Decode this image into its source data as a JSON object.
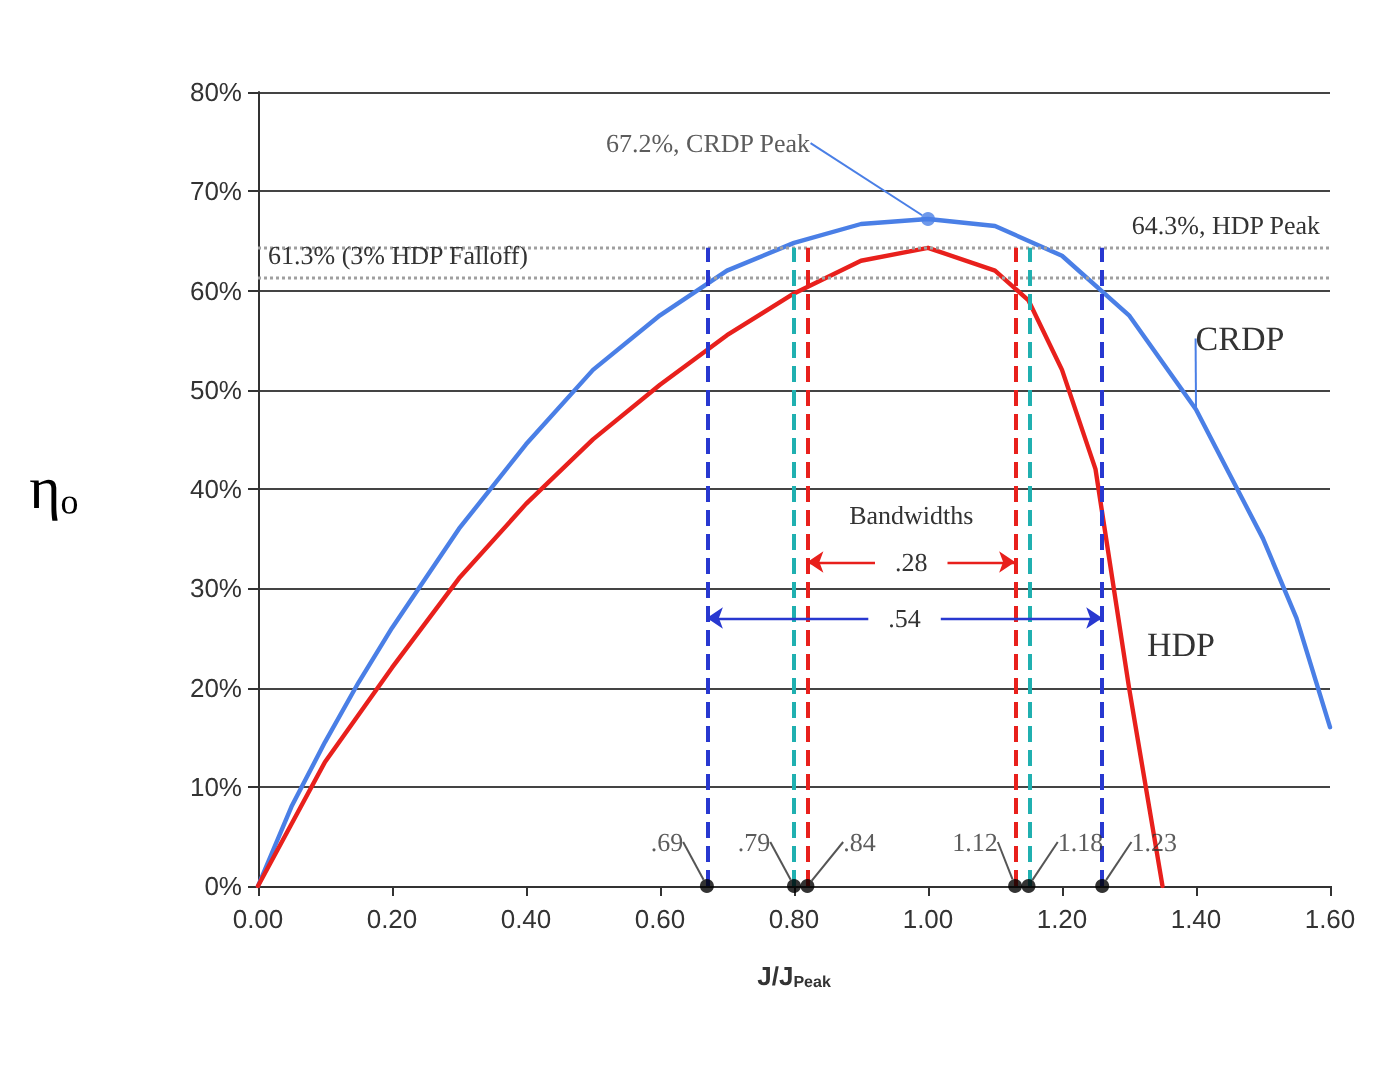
{
  "chart_data": {
    "type": "line",
    "xlabel": "J/J$_{Peak}$",
    "ylabel": "ηₒ",
    "xlim": [
      0,
      1.6
    ],
    "ylim": [
      0,
      80
    ],
    "xticks": [
      {
        "value": 0,
        "label": "0.00"
      },
      {
        "value": 0.2,
        "label": "0.20"
      },
      {
        "value": 0.4,
        "label": "0.40"
      },
      {
        "value": 0.6,
        "label": "0.60"
      },
      {
        "value": 0.8,
        "label": "0.80"
      },
      {
        "value": 1,
        "label": "1.00"
      },
      {
        "value": 1.2,
        "label": "1.20"
      },
      {
        "value": 1.4,
        "label": "1.40"
      },
      {
        "value": 1.6,
        "label": "1.60"
      }
    ],
    "yticks": [
      {
        "value": 0,
        "label": "0%"
      },
      {
        "value": 10,
        "label": "10%"
      },
      {
        "value": 20,
        "label": "20%"
      },
      {
        "value": 30,
        "label": "30%"
      },
      {
        "value": 40,
        "label": "40%"
      },
      {
        "value": 50,
        "label": "50%"
      },
      {
        "value": 60,
        "label": "60%"
      },
      {
        "value": 70,
        "label": "70%"
      },
      {
        "value": 80,
        "label": "80%"
      }
    ],
    "grid": "y",
    "legend": false,
    "marker": "none",
    "line_style": "solid",
    "series": [
      {
        "name": "CRDP",
        "color": "#4a7fe6",
        "x": [
          0,
          0.05,
          0.1,
          0.15,
          0.2,
          0.3,
          0.4,
          0.5,
          0.6,
          0.7,
          0.8,
          0.9,
          1.0,
          1.1,
          1.2,
          1.3,
          1.4,
          1.5,
          1.55,
          1.6
        ],
        "values": [
          0,
          8,
          14.5,
          20.5,
          26,
          36,
          44.5,
          52,
          57.5,
          62,
          64.8,
          66.7,
          67.2,
          66.5,
          63.5,
          57.5,
          48,
          35,
          27,
          16
        ]
      },
      {
        "name": "HDP",
        "color": "#e8201c",
        "x": [
          0,
          0.1,
          0.2,
          0.3,
          0.4,
          0.5,
          0.6,
          0.7,
          0.8,
          0.9,
          1.0,
          1.1,
          1.15,
          1.2,
          1.25,
          1.3,
          1.35
        ],
        "values": [
          0,
          12.5,
          22,
          31,
          38.5,
          45,
          50.5,
          55.5,
          59.7,
          63,
          64.3,
          62,
          59,
          52,
          42,
          20,
          0
        ]
      }
    ],
    "ref_lines": [
      {
        "axis": "y",
        "value": 61.3,
        "label": "61.3% (3% HDP Falloff)",
        "color": "#a0a0a0",
        "line_style": "dotted"
      },
      {
        "axis": "y",
        "value": 64.3,
        "label": "64.3%, HDP Peak",
        "color": "#a0a0a0",
        "line_style": "dotted"
      },
      {
        "axis": "x",
        "value": 0.67,
        "label": null,
        "color": "#2838d0",
        "line_style": "dashed"
      },
      {
        "axis": "x",
        "value": 0.8,
        "label": null,
        "color": "#20b0b0",
        "line_style": "dashed"
      },
      {
        "axis": "x",
        "value": 0.82,
        "label": null,
        "color": "#e8201c",
        "line_style": "dashed"
      },
      {
        "axis": "x",
        "value": 1.13,
        "label": null,
        "color": "#e8201c",
        "line_style": "dashed"
      },
      {
        "axis": "x",
        "value": 1.15,
        "label": null,
        "color": "#20b0b0",
        "line_style": "dashed"
      },
      {
        "axis": "x",
        "value": 1.26,
        "label": null,
        "color": "#2838d0",
        "line_style": "dashed"
      }
    ],
    "annotations": [
      {
        "text": "67.2%, CRDP Peak",
        "x": 1.0,
        "y": 67.2
      },
      "Bandwidths",
      ".28",
      ".54",
      {
        "text": ".69",
        "x": 0.67,
        "y": 0
      },
      {
        "text": ".79",
        "x": 0.8,
        "y": 0
      },
      {
        "text": ".84",
        "x": 0.82,
        "y": 0
      },
      {
        "text": "1.12",
        "x": 1.13,
        "y": 0
      },
      {
        "text": "1.18",
        "x": 1.15,
        "y": 0
      },
      {
        "text": "1.23",
        "x": 1.26,
        "y": 0
      }
    ]
  }
}
